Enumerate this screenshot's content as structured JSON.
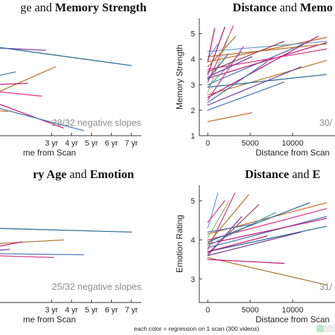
{
  "caption": "each color = regression on 1 scan (300 videos)",
  "palette": [
    "#2f6f96",
    "#4a78b0",
    "#c2187a",
    "#e23a8a",
    "#7a3fa0",
    "#b07a30",
    "#6a9fd8",
    "#d06a2a",
    "#8fc47a",
    "#5aa0a0",
    "#a04a60"
  ],
  "chart_data": [
    {
      "type": "line",
      "title_parts": [
        {
          "text": "ge",
          "bold": false
        },
        {
          "text": " and ",
          "bold": false
        },
        {
          "text": "Memory Strength",
          "bold": true
        }
      ],
      "xlabel": "me from Scan",
      "ylabel": "",
      "xticks": [
        "3 yr",
        "4 yr",
        "5 yr",
        "6 yr",
        "7 yr"
      ],
      "yticks": [],
      "annotation": "28/32 negative slopes",
      "segments": [
        {
          "x0": 0,
          "y0": 4.45,
          "x1": 2.7,
          "y1": 4.35,
          "c": 4
        },
        {
          "x0": 0,
          "y0": 4.5,
          "x1": 7.0,
          "y1": 3.75,
          "c": 0
        },
        {
          "x0": 0,
          "y0": 3.3,
          "x1": 1.2,
          "y1": 3.5,
          "c": 1
        },
        {
          "x0": 0,
          "y0": 2.6,
          "x1": 3.2,
          "y1": 3.7,
          "c": 5
        },
        {
          "x0": 0,
          "y0": 3.0,
          "x1": 1.8,
          "y1": 3.05,
          "c": 2
        },
        {
          "x0": 0,
          "y0": 2.75,
          "x1": 2.5,
          "y1": 2.55,
          "c": 3
        },
        {
          "x0": 0,
          "y0": 2.35,
          "x1": 3.6,
          "y1": 1.3,
          "c": 2
        },
        {
          "x0": 0,
          "y0": 2.15,
          "x1": 4.6,
          "y1": 1.2,
          "c": 1
        },
        {
          "x0": 0,
          "y0": 2.0,
          "x1": 0.8,
          "y1": 1.95,
          "c": 7
        }
      ]
    },
    {
      "type": "line",
      "title_parts": [
        {
          "text": "Distance",
          "bold": true
        },
        {
          "text": " and ",
          "bold": false
        },
        {
          "text": "Memo",
          "bold": true
        }
      ],
      "xlabel": "Distance from Scan",
      "ylabel": "Memory Strength",
      "xticks": [
        "0",
        "5000",
        "10000"
      ],
      "yticks": [
        "1",
        "2",
        "3",
        "4",
        "5"
      ],
      "annotation": "30/",
      "segments": [
        {
          "x0": 0,
          "y0": 1.55,
          "x1": 5200,
          "y1": 1.9,
          "c": 7
        },
        {
          "x0": 0,
          "y0": 2.6,
          "x1": 14000,
          "y1": 3.95,
          "c": 5
        },
        {
          "x0": 0,
          "y0": 2.9,
          "x1": 14000,
          "y1": 3.4,
          "c": 0
        },
        {
          "x0": 0,
          "y0": 3.0,
          "x1": 12000,
          "y1": 4.7,
          "c": 1
        },
        {
          "x0": 0,
          "y0": 3.25,
          "x1": 14000,
          "y1": 4.65,
          "c": 2
        },
        {
          "x0": 0,
          "y0": 3.6,
          "x1": 14000,
          "y1": 4.4,
          "c": 3
        },
        {
          "x0": 0,
          "y0": 3.9,
          "x1": 14000,
          "y1": 4.85,
          "c": 7
        },
        {
          "x0": 0,
          "y0": 4.1,
          "x1": 14000,
          "y1": 4.6,
          "c": 5
        },
        {
          "x0": 0,
          "y0": 4.3,
          "x1": 14000,
          "y1": 4.7,
          "c": 6
        },
        {
          "x0": 0,
          "y0": 2.2,
          "x1": 11000,
          "y1": 3.7,
          "c": 4
        },
        {
          "x0": 0,
          "y0": 2.0,
          "x1": 9000,
          "y1": 3.1,
          "c": 1
        },
        {
          "x0": 0,
          "y0": 2.5,
          "x1": 13000,
          "y1": 4.9,
          "c": 2
        },
        {
          "x0": 0,
          "y0": 3.1,
          "x1": 3000,
          "y1": 5.3,
          "c": 3
        },
        {
          "x0": 0,
          "y0": 2.7,
          "x1": 2600,
          "y1": 5.0,
          "c": 8
        },
        {
          "x0": 0,
          "y0": 3.4,
          "x1": 2000,
          "y1": 5.25,
          "c": 2
        },
        {
          "x0": 0,
          "y0": 2.9,
          "x1": 4000,
          "y1": 4.3,
          "c": 9
        },
        {
          "x0": 0,
          "y0": 3.7,
          "x1": 3300,
          "y1": 4.9,
          "c": 5
        },
        {
          "x0": 0,
          "y0": 2.4,
          "x1": 4200,
          "y1": 4.5,
          "c": 3
        },
        {
          "x0": 0,
          "y0": 3.5,
          "x1": 9000,
          "y1": 4.7,
          "c": 10
        },
        {
          "x0": 0,
          "y0": 3.2,
          "x1": 2400,
          "y1": 4.2,
          "c": 0
        },
        {
          "x0": 0,
          "y0": 4.0,
          "x1": 1200,
          "y1": 4.6,
          "c": 6
        },
        {
          "x0": 0,
          "y0": 2.3,
          "x1": 7000,
          "y1": 3.9,
          "c": 1
        },
        {
          "x0": 0,
          "y0": 3.9,
          "x1": 800,
          "y1": 5.2,
          "c": 2
        },
        {
          "x0": 0,
          "y0": 3.3,
          "x1": 5200,
          "y1": 4.1,
          "c": 4
        }
      ]
    },
    {
      "type": "line",
      "title_parts": [
        {
          "text": "ry Age",
          "bold": true
        },
        {
          "text": " and ",
          "bold": false
        },
        {
          "text": "Emotion",
          "bold": true
        }
      ],
      "xlabel": "me from Scan",
      "ylabel": "",
      "xticks": [
        "3 yr",
        "4 yr",
        "5 yr",
        "6 yr",
        "7 yr"
      ],
      "yticks": [],
      "annotation": "25/32 negative slopes",
      "segments": [
        {
          "x0": 0,
          "y0": 4.3,
          "x1": 7.0,
          "y1": 4.2,
          "c": 0
        },
        {
          "x0": 0,
          "y0": 3.9,
          "x1": 3.6,
          "y1": 4.0,
          "c": 5
        },
        {
          "x0": 0,
          "y0": 3.8,
          "x1": 1.5,
          "y1": 3.95,
          "c": 2
        },
        {
          "x0": 0,
          "y0": 3.65,
          "x1": 4.6,
          "y1": 3.62,
          "c": 1
        },
        {
          "x0": 0,
          "y0": 3.6,
          "x1": 3.1,
          "y1": 3.55,
          "c": 3
        },
        {
          "x0": 0,
          "y0": 3.72,
          "x1": 0.9,
          "y1": 3.76,
          "c": 4
        }
      ]
    },
    {
      "type": "line",
      "title_parts": [
        {
          "text": "Distance",
          "bold": true
        },
        {
          "text": " and ",
          "bold": false
        },
        {
          "text": "E",
          "bold": true
        }
      ],
      "xlabel": "Distance from Scan",
      "ylabel": "Emotion Rating",
      "xticks": [
        "0",
        "5000",
        "10000"
      ],
      "yticks": [
        "3",
        "4",
        "5"
      ],
      "annotation": "31/",
      "segments": [
        {
          "x0": 0,
          "y0": 3.55,
          "x1": 14000,
          "y1": 2.85,
          "c": 5
        },
        {
          "x0": 0,
          "y0": 3.7,
          "x1": 14000,
          "y1": 4.35,
          "c": 0
        },
        {
          "x0": 0,
          "y0": 3.8,
          "x1": 14000,
          "y1": 4.6,
          "c": 1
        },
        {
          "x0": 0,
          "y0": 3.9,
          "x1": 14000,
          "y1": 4.55,
          "c": 2
        },
        {
          "x0": 0,
          "y0": 4.0,
          "x1": 14000,
          "y1": 4.8,
          "c": 3
        },
        {
          "x0": 0,
          "y0": 4.15,
          "x1": 14000,
          "y1": 4.95,
          "c": 7
        },
        {
          "x0": 0,
          "y0": 3.6,
          "x1": 11000,
          "y1": 4.2,
          "c": 4
        },
        {
          "x0": 0,
          "y0": 3.5,
          "x1": 9000,
          "y1": 3.4,
          "c": 2
        },
        {
          "x0": 0,
          "y0": 3.75,
          "x1": 3200,
          "y1": 5.2,
          "c": 3
        },
        {
          "x0": 0,
          "y0": 4.3,
          "x1": 1200,
          "y1": 5.2,
          "c": 6
        },
        {
          "x0": 0,
          "y0": 3.9,
          "x1": 4800,
          "y1": 5.15,
          "c": 5
        },
        {
          "x0": 0,
          "y0": 3.65,
          "x1": 6000,
          "y1": 4.9,
          "c": 10
        },
        {
          "x0": 0,
          "y0": 4.05,
          "x1": 2500,
          "y1": 5.0,
          "c": 8
        },
        {
          "x0": 0,
          "y0": 3.85,
          "x1": 8000,
          "y1": 4.7,
          "c": 9
        },
        {
          "x0": 0,
          "y0": 4.2,
          "x1": 5200,
          "y1": 4.4,
          "c": 1
        },
        {
          "x0": 0,
          "y0": 3.7,
          "x1": 7000,
          "y1": 4.1,
          "c": 2
        },
        {
          "x0": 0,
          "y0": 4.45,
          "x1": 2000,
          "y1": 5.0,
          "c": 3
        },
        {
          "x0": 0,
          "y0": 3.95,
          "x1": 12000,
          "y1": 4.95,
          "c": 0
        },
        {
          "x0": 0,
          "y0": 3.6,
          "x1": 4000,
          "y1": 4.6,
          "c": 4
        }
      ]
    }
  ]
}
